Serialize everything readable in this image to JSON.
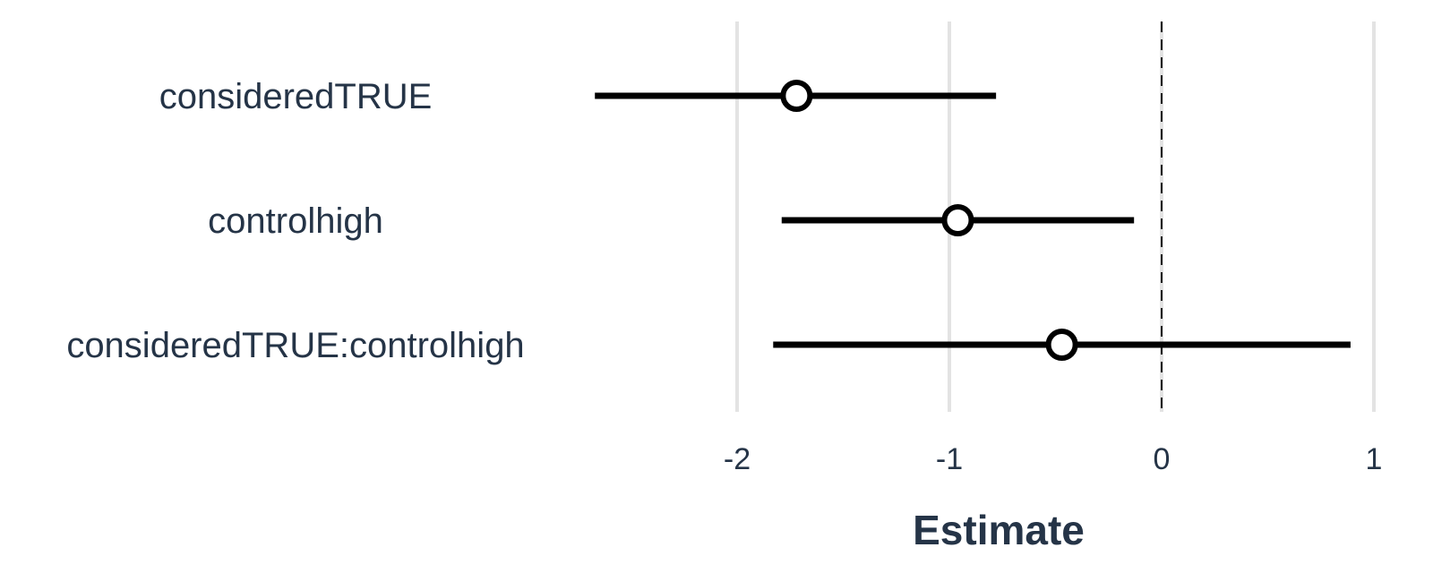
{
  "chart_data": {
    "type": "scatter",
    "subtype": "coefficient-plot",
    "xlabel": "Estimate",
    "ylabel": "",
    "xlim": [
      -2.55,
      1.05
    ],
    "x_ticks": [
      -2,
      -1,
      0,
      1
    ],
    "x_tick_labels": [
      "-2",
      "-1",
      "0",
      "1"
    ],
    "reference_line": {
      "x": 0,
      "style": "dashed"
    },
    "grid": "vertical major",
    "legend": "none",
    "terms": [
      {
        "label": "consideredTRUE",
        "estimate": -1.72,
        "conf_low": -2.67,
        "conf_high": -0.78
      },
      {
        "label": "controlhigh",
        "estimate": -0.96,
        "conf_low": -1.79,
        "conf_high": -0.13
      },
      {
        "label": "consideredTRUE:controlhigh",
        "estimate": -0.47,
        "conf_low": -1.83,
        "conf_high": 0.89
      }
    ],
    "colors": {
      "text": "#253447",
      "grid": "#e3e3e3",
      "marks": "#000000",
      "point_fill": "#ffffff"
    }
  }
}
